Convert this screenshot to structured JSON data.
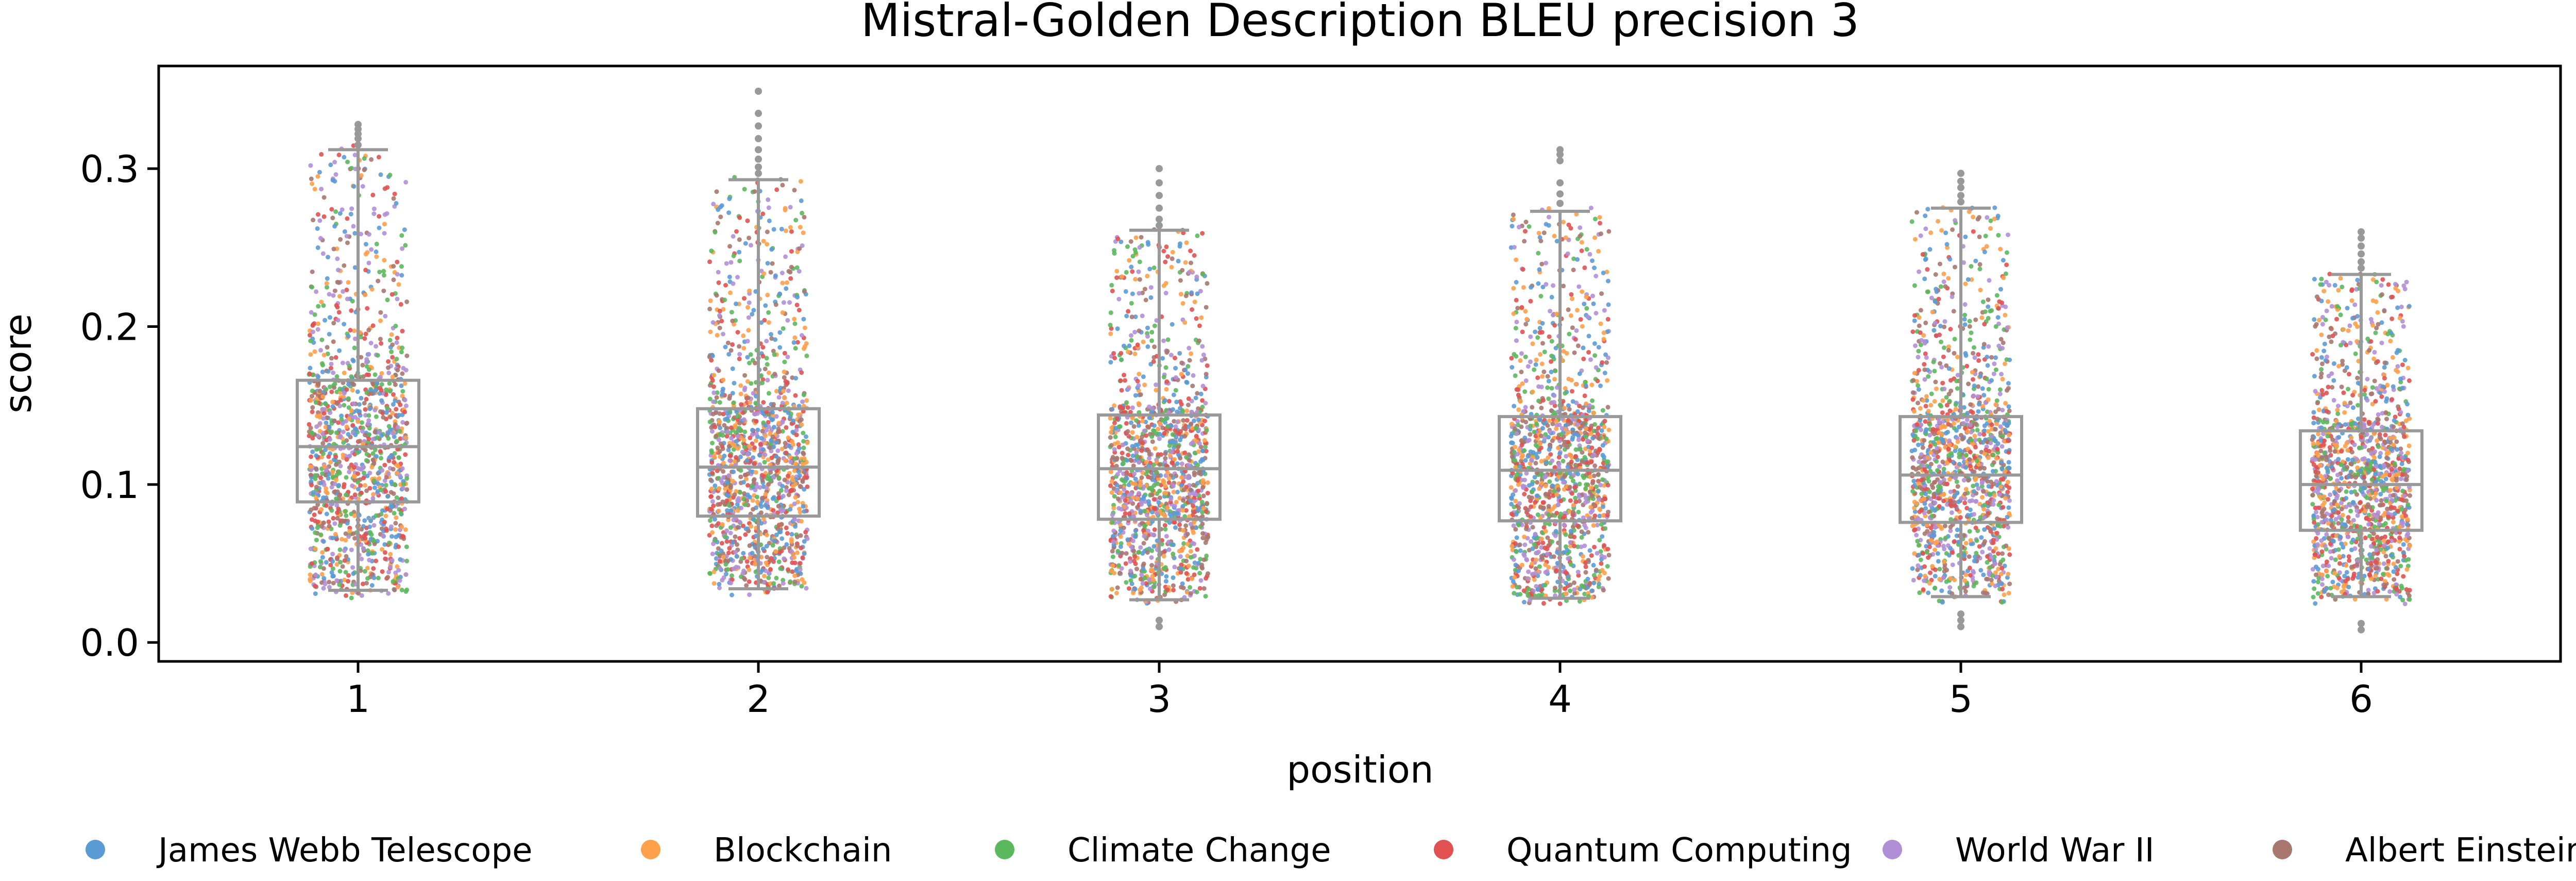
{
  "chart_data": {
    "type": "box-strip",
    "title": "Mistral-Golden Description BLEU precision 3",
    "xlabel": "position",
    "ylabel": "score",
    "ylim": [
      -0.012,
      0.365
    ],
    "yticks": [
      0.0,
      0.1,
      0.2,
      0.3
    ],
    "ytick_labels": [
      "0.0",
      "0.1",
      "0.2",
      "0.3"
    ],
    "categories": [
      "1",
      "2",
      "3",
      "4",
      "5",
      "6"
    ],
    "grid": false,
    "legend_position": "bottom",
    "box_color": "#999999",
    "boxes": [
      {
        "position": "1",
        "q1": 0.089,
        "median": 0.124,
        "q3": 0.166,
        "whisker_low": 0.033,
        "whisker_high": 0.312,
        "outliers": [
          0.315,
          0.319,
          0.322,
          0.325,
          0.328
        ]
      },
      {
        "position": "2",
        "q1": 0.08,
        "median": 0.111,
        "q3": 0.148,
        "whisker_low": 0.034,
        "whisker_high": 0.293,
        "outliers": [
          0.297,
          0.301,
          0.306,
          0.312,
          0.319,
          0.327,
          0.335,
          0.349
        ]
      },
      {
        "position": "3",
        "q1": 0.078,
        "median": 0.11,
        "q3": 0.144,
        "whisker_low": 0.027,
        "whisker_high": 0.261,
        "outliers": [
          0.264,
          0.268,
          0.275,
          0.283,
          0.291,
          0.3,
          0.01,
          0.014
        ]
      },
      {
        "position": "4",
        "q1": 0.077,
        "median": 0.109,
        "q3": 0.143,
        "whisker_low": 0.028,
        "whisker_high": 0.273,
        "outliers": [
          0.278,
          0.284,
          0.291,
          0.305,
          0.309,
          0.312
        ]
      },
      {
        "position": "5",
        "q1": 0.076,
        "median": 0.106,
        "q3": 0.143,
        "whisker_low": 0.029,
        "whisker_high": 0.275,
        "outliers": [
          0.279,
          0.283,
          0.288,
          0.292,
          0.297,
          0.01,
          0.014,
          0.018
        ]
      },
      {
        "position": "6",
        "q1": 0.071,
        "median": 0.1,
        "q3": 0.134,
        "whisker_low": 0.029,
        "whisker_high": 0.233,
        "outliers": [
          0.237,
          0.241,
          0.246,
          0.251,
          0.256,
          0.26,
          0.008,
          0.012
        ]
      }
    ],
    "series": [
      {
        "name": "James Webb Telescope",
        "color": "#5b9bd5"
      },
      {
        "name": "Blockchain",
        "color": "#ffa04a"
      },
      {
        "name": "Climate Change",
        "color": "#5cb85c"
      },
      {
        "name": "Quantum Computing",
        "color": "#e05252"
      },
      {
        "name": "World War II",
        "color": "#b18fd6"
      },
      {
        "name": "Albert Einstein",
        "color": "#a8776f"
      }
    ]
  }
}
